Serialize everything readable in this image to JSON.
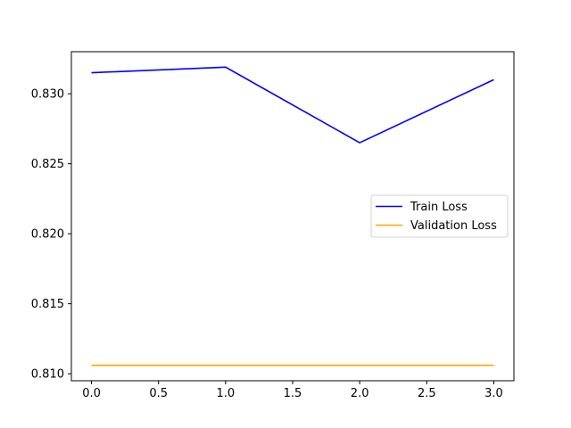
{
  "chart_data": {
    "type": "line",
    "title": "",
    "xlabel": "",
    "ylabel": "",
    "x": [
      0,
      1,
      2,
      3
    ],
    "xlim": [
      -0.15,
      3.15
    ],
    "ylim": [
      0.8095,
      0.833
    ],
    "xticks": [
      0,
      0.5,
      1,
      1.5,
      2,
      2.5,
      3
    ],
    "xtick_labels": [
      "0.0",
      "0.5",
      "1.0",
      "1.5",
      "2.0",
      "2.5",
      "3.0"
    ],
    "yticks": [
      0.81,
      0.815,
      0.82,
      0.825,
      0.83
    ],
    "ytick_labels": [
      "0.810",
      "0.815",
      "0.820",
      "0.825",
      "0.830"
    ],
    "grid": false,
    "legend_position": "center-right",
    "series": [
      {
        "name": "Train Loss",
        "color": "#0000ff",
        "values": [
          0.8315,
          0.8319,
          0.8265,
          0.831
        ]
      },
      {
        "name": "Validation Loss",
        "color": "#ffa500",
        "values": [
          0.8106,
          0.8106,
          0.8106,
          0.8106
        ]
      }
    ]
  }
}
